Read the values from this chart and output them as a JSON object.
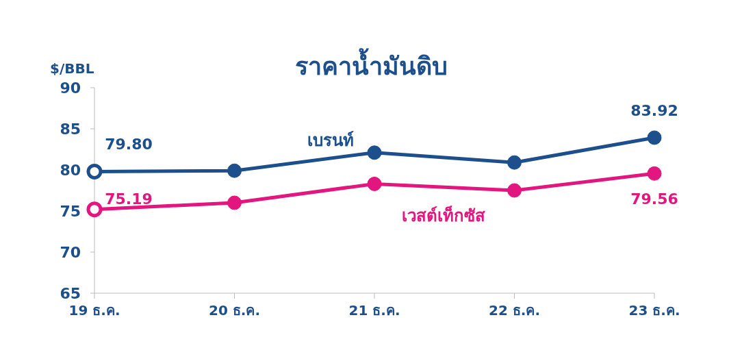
{
  "chart_data": {
    "type": "line",
    "title": "ราคาน้ำมันดิบ",
    "ylabel": "$/BBL",
    "categories": [
      "19 ธ.ค.",
      "20 ธ.ค.",
      "21 ธ.ค.",
      "22 ธ.ค.",
      "23 ธ.ค."
    ],
    "series": [
      {
        "name": "เบรนท์",
        "color": "#1c4f8c",
        "values": [
          79.8,
          79.9,
          82.1,
          80.9,
          83.92
        ],
        "value_labels": [
          "79.80",
          null,
          null,
          null,
          "83.92"
        ]
      },
      {
        "name": "เวสต์เท็กซัส",
        "color": "#e3157f",
        "values": [
          75.19,
          76.0,
          78.3,
          77.5,
          79.56
        ],
        "value_labels": [
          "75.19",
          null,
          null,
          null,
          "79.56"
        ]
      }
    ],
    "ylim": [
      65,
      90
    ],
    "yticks": [
      65,
      70,
      75,
      80,
      85,
      90
    ],
    "grid": false,
    "legend": false,
    "marker": "circle",
    "line_style": "solid"
  }
}
